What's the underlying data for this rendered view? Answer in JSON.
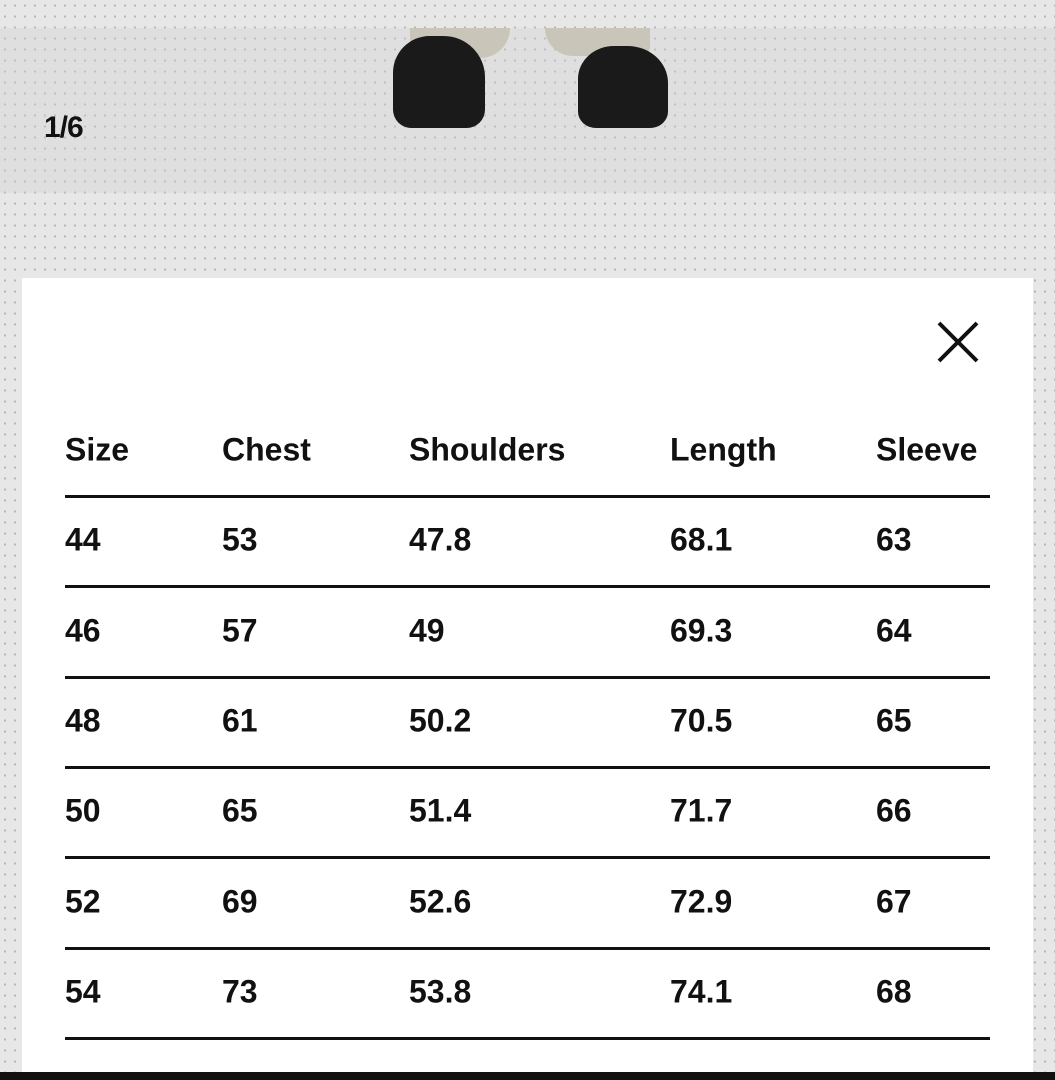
{
  "gallery": {
    "counter": "1/6"
  },
  "size_chart": {
    "close_icon": "close-icon",
    "columns": [
      "Size",
      "Chest",
      "Shoulders",
      "Length",
      "Sleeve"
    ],
    "rows": [
      [
        "44",
        "53",
        "47.8",
        "68.1",
        "63"
      ],
      [
        "46",
        "57",
        "49",
        "69.3",
        "64"
      ],
      [
        "48",
        "61",
        "50.2",
        "70.5",
        "65"
      ],
      [
        "50",
        "65",
        "51.4",
        "71.7",
        "66"
      ],
      [
        "52",
        "69",
        "52.6",
        "72.9",
        "67"
      ],
      [
        "54",
        "73",
        "53.8",
        "74.1",
        "68"
      ]
    ]
  }
}
